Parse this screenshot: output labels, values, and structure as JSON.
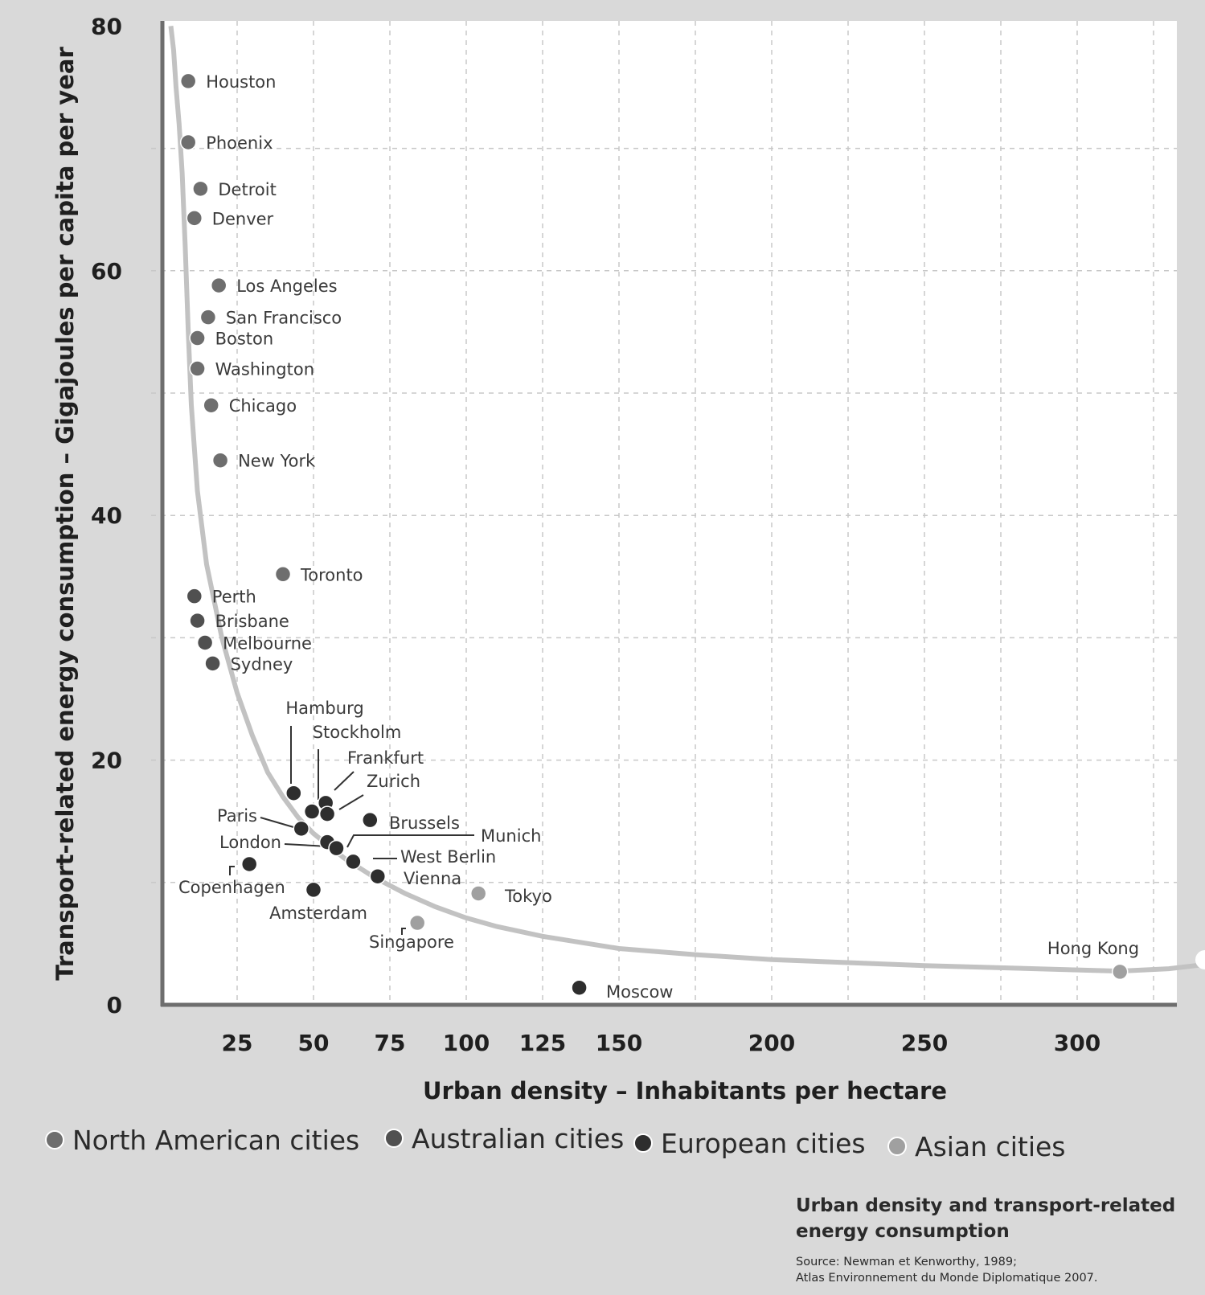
{
  "chart_data": {
    "type": "scatter",
    "title": "Urban density and transport-related energy consumption",
    "source_lines": [
      "Source: Newman et Kenworthy, 1989;",
      "Atlas Environnement du Monde Diplomatique 2007."
    ],
    "xlabel": "Urban density – Inhabitants per hectare",
    "ylabel": "Transport-related energy consumption – Gigajoules per capita per year",
    "x_ticks": [
      25,
      50,
      75,
      100,
      125,
      150,
      200,
      250,
      300
    ],
    "y_ticks": [
      0,
      20,
      40,
      60,
      80
    ],
    "ylim": [
      0,
      80
    ],
    "grid": true,
    "legend": [
      {
        "name": "North American cities",
        "color": "#6e6e6e"
      },
      {
        "name": "Australian cities",
        "color": "#505050"
      },
      {
        "name": "European cities",
        "color": "#2e2e2e"
      },
      {
        "name": "Asian cities",
        "color": "#a0a0a0"
      }
    ],
    "series": [
      {
        "name": "North American cities",
        "color": "#6e6e6e",
        "points": [
          {
            "label": "Houston",
            "x": 9,
            "y": 75.5
          },
          {
            "label": "Phoenix",
            "x": 9,
            "y": 70.5
          },
          {
            "label": "Detroit",
            "x": 13,
            "y": 66.7
          },
          {
            "label": "Denver",
            "x": 11,
            "y": 64.3
          },
          {
            "label": "Los Angeles",
            "x": 19,
            "y": 58.8
          },
          {
            "label": "San Francisco",
            "x": 15.5,
            "y": 56.2
          },
          {
            "label": "Boston",
            "x": 12,
            "y": 54.5
          },
          {
            "label": "Washington",
            "x": 12,
            "y": 52
          },
          {
            "label": "Chicago",
            "x": 16.5,
            "y": 49
          },
          {
            "label": "New York",
            "x": 19.5,
            "y": 44.5
          },
          {
            "label": "Toronto",
            "x": 40,
            "y": 35.2
          }
        ]
      },
      {
        "name": "Australian cities",
        "color": "#505050",
        "points": [
          {
            "label": "Perth",
            "x": 11,
            "y": 33.4
          },
          {
            "label": "Brisbane",
            "x": 12,
            "y": 31.4
          },
          {
            "label": "Melbourne",
            "x": 14.5,
            "y": 29.6
          },
          {
            "label": "Sydney",
            "x": 17,
            "y": 27.9
          }
        ]
      },
      {
        "name": "European cities",
        "color": "#2e2e2e",
        "points": [
          {
            "label": "Hamburg",
            "x": 43.5,
            "y": 17.3
          },
          {
            "label": "Stockholm",
            "x": 49.5,
            "y": 15.8
          },
          {
            "label": "Frankfurt",
            "x": 54,
            "y": 16.5
          },
          {
            "label": "Zurich",
            "x": 54.5,
            "y": 15.6
          },
          {
            "label": "Paris",
            "x": 46,
            "y": 14.4
          },
          {
            "label": "Brussels",
            "x": 68.5,
            "y": 15.1
          },
          {
            "label": "London",
            "x": 54.5,
            "y": 13.3
          },
          {
            "label": "Munich",
            "x": 57.5,
            "y": 12.8
          },
          {
            "label": "West Berlin",
            "x": 63,
            "y": 11.7
          },
          {
            "label": "Vienna",
            "x": 71,
            "y": 10.5
          },
          {
            "label": "Copenhagen",
            "x": 29,
            "y": 11.5
          },
          {
            "label": "Amsterdam",
            "x": 50,
            "y": 9.4
          },
          {
            "label": "Moscow",
            "x": 137,
            "y": 1.4
          }
        ]
      },
      {
        "name": "Asian cities",
        "color": "#a0a0a0",
        "points": [
          {
            "label": "Tokyo",
            "x": 104,
            "y": 9.1
          },
          {
            "label": "Singapore",
            "x": 84,
            "y": 6.7
          },
          {
            "label": "Hong Kong",
            "x": 314,
            "y": 2.7
          }
        ]
      }
    ]
  }
}
